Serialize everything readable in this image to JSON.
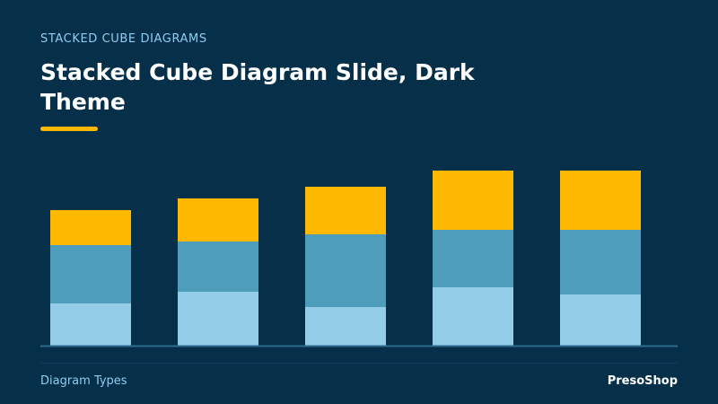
{
  "slide": {
    "eyebrow": "STACKED CUBE DIAGRAMS",
    "title": "Stacked Cube Diagram Slide, Dark Theme",
    "footer_left": "Diagram Types",
    "footer_right": "PresoShop"
  },
  "colors": {
    "background": "#06304a",
    "accent": "#ffb800",
    "bottom_segment": "#94cde8",
    "middle_segment": "#4e9dbb",
    "top_segment": "#ffb800",
    "baseline": "#2f6a8e"
  },
  "chart_data": {
    "type": "bar",
    "stacked": true,
    "categories": [
      "",
      "",
      "",
      "",
      ""
    ],
    "series": [
      {
        "values": [
          47,
          60,
          43,
          65,
          57
        ]
      },
      {
        "values": [
          65,
          56,
          81,
          64,
          72
        ]
      },
      {
        "values": [
          39,
          48,
          53,
          66,
          66
        ]
      }
    ],
    "ylim": [
      0,
      195
    ],
    "grid": false,
    "legend": "none"
  }
}
